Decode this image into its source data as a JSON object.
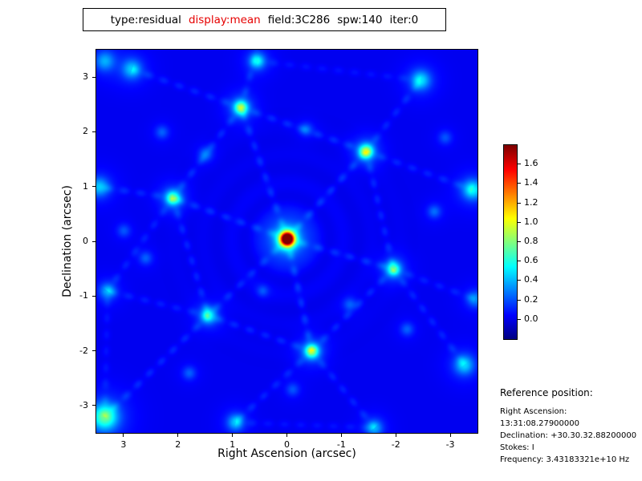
{
  "title": {
    "parts": [
      {
        "text": "type:residual",
        "color": "#000000"
      },
      {
        "text": "display:mean",
        "color": "#e60000"
      },
      {
        "text": "field:3C286",
        "color": "#000000"
      },
      {
        "text": "spw:140",
        "color": "#000000"
      },
      {
        "text": "iter:0",
        "color": "#000000"
      }
    ]
  },
  "reference": {
    "heading": "Reference position:",
    "lines": [
      "Right Ascension: 13:31:08.27900000",
      "Declination: +30.30.32.88200000",
      "Stokes: I",
      "Frequency: 3.43183321e+10 Hz"
    ]
  },
  "chart_data": {
    "type": "heatmap",
    "title": "type:residual display:mean field:3C286 spw:140 iter:0",
    "xlabel": "Right Ascension (arcsec)",
    "ylabel": "Declination (arcsec)",
    "x_range": [
      3.5,
      -3.5
    ],
    "y_range": [
      -3.5,
      3.5
    ],
    "xticks": [
      "3",
      "2",
      "1",
      "0",
      "-1",
      "-2",
      "-3"
    ],
    "xtick_values": [
      3,
      2,
      1,
      0,
      -1,
      -2,
      -3
    ],
    "yticks": [
      "-3",
      "-2",
      "-1",
      "0",
      "1",
      "2",
      "3"
    ],
    "ytick_values": [
      -3,
      -2,
      -1,
      0,
      1,
      2,
      3
    ],
    "colormap": "jet",
    "value_min": -0.2,
    "value_max": 1.8,
    "background_level": 0.02,
    "colorbar_ticks": [
      "1.6",
      "1.4",
      "1.2",
      "1.0",
      "0.8",
      "0.6",
      "0.4",
      "0.2",
      "0.0"
    ],
    "colorbar_tick_values": [
      1.6,
      1.4,
      1.2,
      1.0,
      0.8,
      0.6,
      0.4,
      0.2,
      0.0
    ],
    "central_peak": {
      "x": 0.0,
      "y": 0.05,
      "value": 1.72
    },
    "blobs": [
      [
        0.0,
        0.05,
        1.72,
        0.085
      ],
      [
        0.0,
        0.05,
        0.26,
        0.22
      ],
      [
        0.85,
        2.45,
        0.6,
        0.1
      ],
      [
        -1.45,
        1.65,
        0.65,
        0.1
      ],
      [
        2.1,
        0.8,
        0.55,
        0.1
      ],
      [
        -1.95,
        -0.5,
        0.5,
        0.1
      ],
      [
        -0.45,
        -2.0,
        0.6,
        0.1
      ],
      [
        1.45,
        -1.35,
        0.45,
        0.1
      ],
      [
        3.35,
        -3.2,
        0.62,
        0.16
      ],
      [
        -3.4,
        0.95,
        0.45,
        0.12
      ],
      [
        0.55,
        3.3,
        0.4,
        0.1
      ],
      [
        2.85,
        3.15,
        0.35,
        0.12
      ],
      [
        -2.45,
        2.95,
        0.4,
        0.12
      ],
      [
        -3.25,
        -2.25,
        0.38,
        0.12
      ],
      [
        0.95,
        -3.3,
        0.35,
        0.1
      ],
      [
        -1.6,
        -3.4,
        0.32,
        0.1
      ],
      [
        3.45,
        1.0,
        0.35,
        0.12
      ],
      [
        3.3,
        -0.9,
        0.3,
        0.1
      ],
      [
        3.35,
        3.3,
        0.3,
        0.12
      ],
      [
        -3.45,
        -1.05,
        0.25,
        0.1
      ],
      [
        1.5,
        1.6,
        0.22,
        0.08
      ],
      [
        -0.35,
        2.05,
        0.18,
        0.08
      ],
      [
        -2.7,
        0.55,
        0.2,
        0.08
      ],
      [
        2.6,
        -0.3,
        0.18,
        0.08
      ],
      [
        -1.15,
        -1.15,
        0.18,
        0.08
      ],
      [
        0.45,
        -0.9,
        0.15,
        0.07
      ],
      [
        2.3,
        2.0,
        0.18,
        0.08
      ],
      [
        -2.2,
        -1.6,
        0.18,
        0.08
      ],
      [
        -0.1,
        -2.7,
        0.16,
        0.08
      ],
      [
        1.8,
        -2.4,
        0.18,
        0.08
      ],
      [
        -2.9,
        1.9,
        0.16,
        0.08
      ],
      [
        3.0,
        0.2,
        0.16,
        0.08
      ]
    ],
    "streaks": [
      [
        0,
        0.05,
        0.85,
        2.45,
        0.11
      ],
      [
        0,
        0.05,
        -1.45,
        1.65,
        0.12
      ],
      [
        0,
        0.05,
        2.1,
        0.8,
        0.11
      ],
      [
        0,
        0.05,
        -1.95,
        -0.5,
        0.11
      ],
      [
        0,
        0.05,
        -0.45,
        -2.0,
        0.12
      ],
      [
        0,
        0.05,
        1.45,
        -1.35,
        0.1
      ],
      [
        0.85,
        2.45,
        -1.45,
        1.65,
        0.1
      ],
      [
        0.85,
        2.45,
        2.1,
        0.8,
        0.1
      ],
      [
        -1.45,
        1.65,
        -1.95,
        -0.5,
        0.1
      ],
      [
        2.1,
        0.8,
        1.45,
        -1.35,
        0.1
      ],
      [
        -1.95,
        -0.5,
        -0.45,
        -2.0,
        0.1
      ],
      [
        -0.45,
        -2.0,
        1.45,
        -1.35,
        0.1
      ],
      [
        0.85,
        2.45,
        0.55,
        3.5,
        0.09
      ],
      [
        0.85,
        2.45,
        2.85,
        3.15,
        0.09
      ],
      [
        -1.45,
        1.65,
        -2.45,
        2.95,
        0.09
      ],
      [
        -1.45,
        1.65,
        -3.4,
        0.95,
        0.09
      ],
      [
        2.1,
        0.8,
        3.45,
        1.0,
        0.09
      ],
      [
        2.1,
        0.8,
        3.3,
        -0.9,
        0.08
      ],
      [
        -1.95,
        -0.5,
        -3.25,
        -2.25,
        0.09
      ],
      [
        -1.95,
        -0.5,
        -3.45,
        -1.05,
        0.08
      ],
      [
        -0.45,
        -2.0,
        -1.6,
        -3.4,
        0.09
      ],
      [
        -0.45,
        -2.0,
        0.95,
        -3.3,
        0.09
      ],
      [
        1.45,
        -1.35,
        3.35,
        -3.2,
        0.1
      ],
      [
        1.45,
        -1.35,
        3.3,
        -0.9,
        0.08
      ],
      [
        0.55,
        3.3,
        -2.45,
        2.95,
        0.06
      ],
      [
        3.35,
        -3.2,
        3.3,
        -0.9,
        0.06
      ],
      [
        0.95,
        -3.3,
        -1.6,
        -3.4,
        0.06
      ]
    ],
    "ripple": {
      "period": 0.52,
      "amplitude": 0.05,
      "decay": 1.1
    }
  }
}
